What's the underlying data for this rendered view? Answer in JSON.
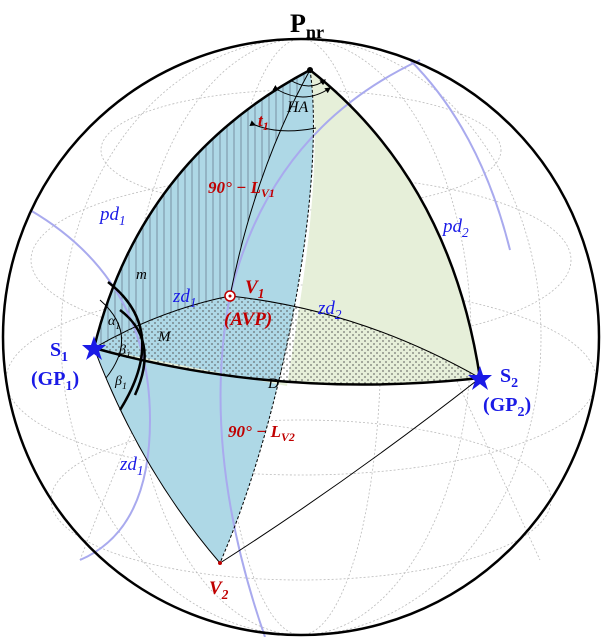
{
  "labels": {
    "pole": {
      "text": "P",
      "sub": "nr"
    },
    "ha": "HA",
    "t1": {
      "text": "t",
      "sub": "1"
    },
    "colat_v1": {
      "text": "90° − L",
      "sub": "V1"
    },
    "pd1": {
      "text": "pd",
      "sub": "1"
    },
    "pd2": {
      "text": "pd",
      "sub": "2"
    },
    "m": "m",
    "alpha1": {
      "text": "α",
      "sub": "1"
    },
    "beta1_upper": {
      "text": "β",
      "sub": "1"
    },
    "beta1_lower": {
      "text": "β",
      "sub": "1"
    },
    "big_m": "M",
    "zd1_upper": {
      "text": "zd",
      "sub": "1"
    },
    "v1": {
      "text": "V",
      "sub": "1"
    },
    "avp": "(AVP)",
    "zd2": {
      "text": "zd",
      "sub": "2"
    },
    "s1": {
      "text": "S",
      "sub": "1"
    },
    "gp1": {
      "text": "(GP",
      "sub": "1",
      "tail": ")"
    },
    "s2": {
      "text": "S",
      "sub": "2"
    },
    "gp2": {
      "text": "(GP",
      "sub": "2",
      "tail": ")"
    },
    "d": "D",
    "colat_v2": {
      "text": "90° − L",
      "sub": "V2"
    },
    "zd1_lower": {
      "text": "zd",
      "sub": "1"
    },
    "v2": {
      "text": "V",
      "sub": "2"
    }
  }
}
